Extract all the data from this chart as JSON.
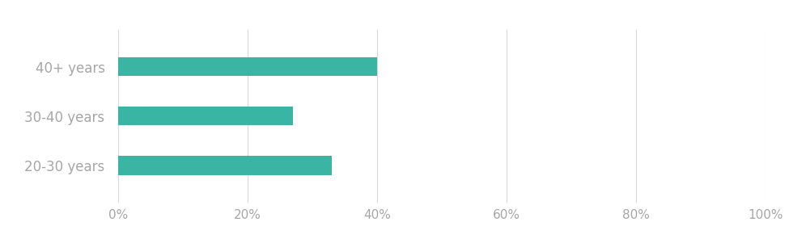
{
  "categories": [
    "20-30 years",
    "30-40 years",
    "40+ years"
  ],
  "values": [
    0.33,
    0.27,
    0.4
  ],
  "bar_color": "#3ab5a4",
  "bar_height": 0.38,
  "xlim": [
    0,
    1.0
  ],
  "xticks": [
    0,
    0.2,
    0.4,
    0.6,
    0.8,
    1.0
  ],
  "xtick_labels": [
    "0%",
    "20%",
    "40%",
    "60%",
    "80%",
    "100%"
  ],
  "background_color": "#ffffff",
  "grid_color": "#d9d9d9",
  "tick_label_color": "#a6a6a6",
  "label_fontsize": 12,
  "tick_fontsize": 11
}
